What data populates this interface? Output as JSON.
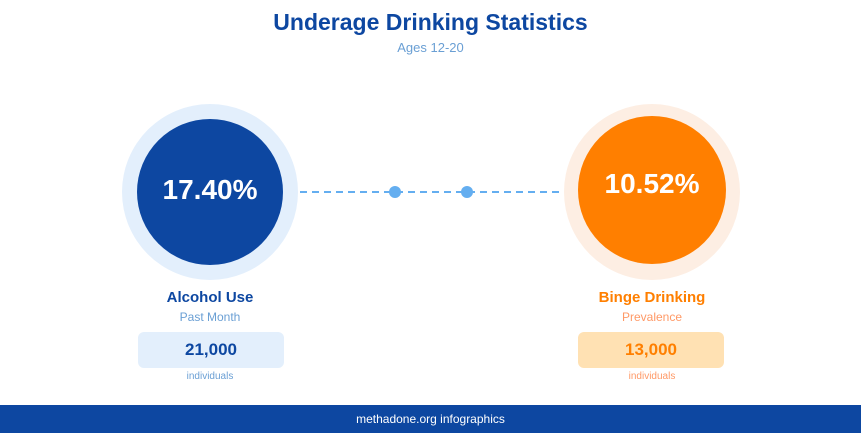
{
  "title": "Underage Drinking Statistics",
  "subtitle": "Ages 12-20",
  "left": {
    "value": "17.40%",
    "label": "Alcohol Use",
    "sublabel": "Past Month",
    "count": "21,000",
    "unit": "individuals",
    "color": "#0d47a1"
  },
  "right": {
    "value": "10.52%",
    "label": "Binge Drinking",
    "sublabel": "Prevalence",
    "count": "13,000",
    "unit": "individuals",
    "color": "#ff7f00"
  },
  "footer": "methadone.org infographics"
}
